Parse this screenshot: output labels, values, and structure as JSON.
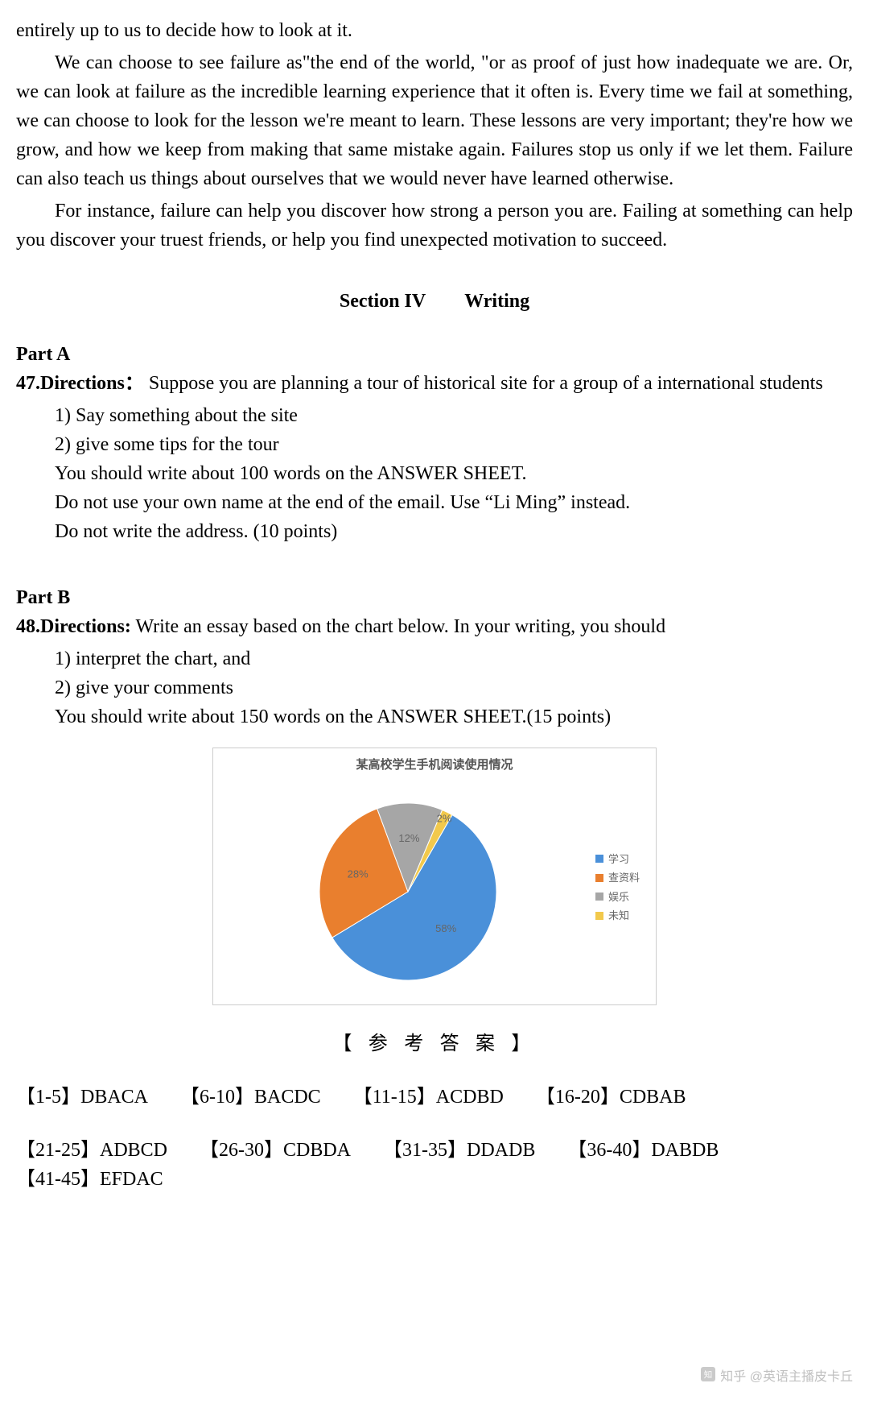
{
  "passage": {
    "p1": "entirely up to us to decide how to look at it.",
    "p2": "We can choose to see failure as\"the end of the world, \"or as proof of just how inadequate we are. Or, we can look at failure as the incredible learning experience that it often is. Every time we fail at something, we can choose to look for the lesson we're meant to learn. These lessons are very important; they're how we grow, and how we keep from making that same mistake again. Failures stop us only if we let them. Failure can also teach us things about ourselves that we would never have learned otherwise.",
    "p3": "For instance, failure can help you discover how strong a person you are. Failing at something can help you discover your truest friends, or help you find unexpected motivation to succeed."
  },
  "section_heading": "Section IV  Writing",
  "partA": {
    "label": "Part A",
    "dir_num": "47.Directions：",
    "dir_text": " Suppose you are planning a tour of historical site for a group of a international students",
    "l1": "1) Say something about the site",
    "l2": "2) give some tips for the tour",
    "l3": "You should write about 100 words on the ANSWER SHEET.",
    "l4": "Do not use your own name at the end of the email. Use “Li Ming” instead.",
    "l5": "Do not write the address. (10 points)"
  },
  "partB": {
    "label": "Part B",
    "dir_num": "48.Directions:",
    "dir_text": " Write an essay based on the chart below. In your writing, you should",
    "l1": "1) interpret the chart, and",
    "l2": "2) give your comments",
    "l3": "You should write about 150 words on the ANSWER SHEET.(15 points)"
  },
  "chart": {
    "title": "某高校学生手机阅读使用情况",
    "type": "pie",
    "slices": [
      {
        "label": "学习",
        "value": 58,
        "color": "#4a90d9",
        "label_text": "58%"
      },
      {
        "label": "查资料",
        "value": 28,
        "color": "#e97f2e",
        "label_text": "28%"
      },
      {
        "label": "娱乐",
        "value": 12,
        "color": "#a6a6a6",
        "label_text": "12%"
      },
      {
        "label": "未知",
        "value": 2,
        "color": "#f2c94c",
        "label_text": "2%"
      }
    ],
    "legend_prefix": "■ ",
    "background_color": "#ffffff",
    "title_fontsize": 15,
    "label_fontsize": 13,
    "label_color": "#666666",
    "start_angle_deg": -60,
    "pie_radius": 110
  },
  "answers": {
    "heading": "【 参 考 答 案 】",
    "groups": [
      {
        "range": "【1-5】",
        "ans": "DBACA"
      },
      {
        "range": "【6-10】",
        "ans": "BACDC"
      },
      {
        "range": "【11-15】",
        "ans": "ACDBD"
      },
      {
        "range": "【16-20】",
        "ans": "CDBAB"
      },
      {
        "range": "【21-25】",
        "ans": "ADBCD"
      },
      {
        "range": "【26-30】",
        "ans": "CDBDA"
      },
      {
        "range": "【31-35】",
        "ans": "DDADB"
      },
      {
        "range": "【36-40】",
        "ans": "DABDB"
      },
      {
        "range": "【41-45】",
        "ans": "EFDAC"
      }
    ]
  },
  "watermark": "知乎 @英语主播皮卡丘"
}
